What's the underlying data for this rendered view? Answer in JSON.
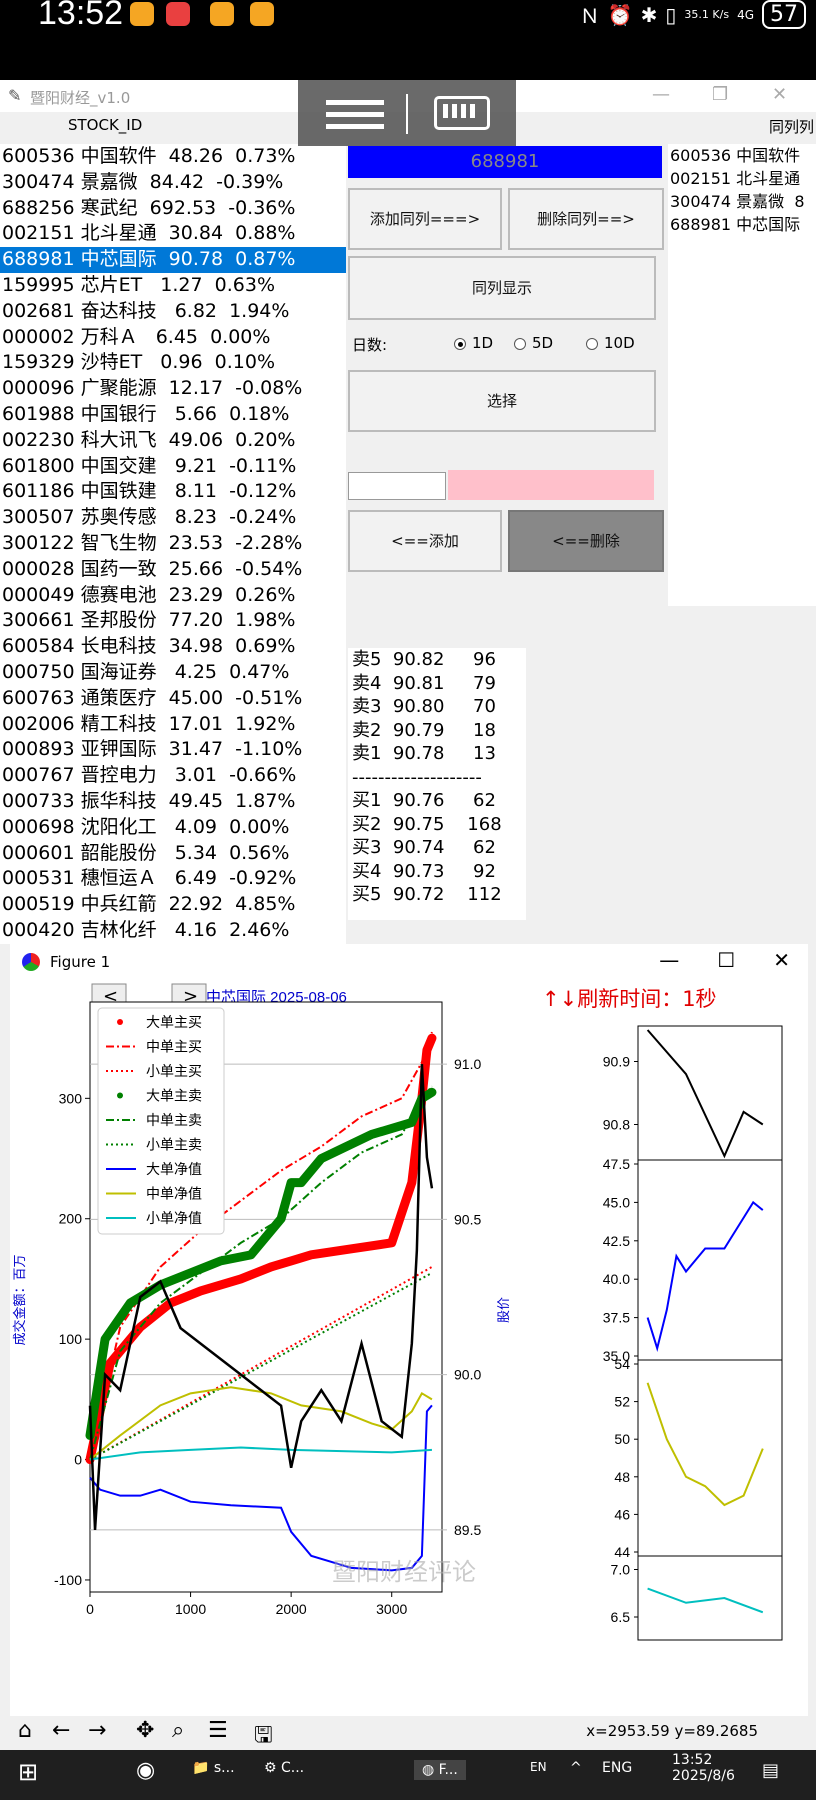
{
  "status": {
    "time": "13:52",
    "net_speed": "35.1 K/s",
    "network": "4G",
    "battery": "57"
  },
  "app": {
    "title": "暨阳财经_v1.0",
    "col_stock_id": "STOCK_ID",
    "col_peer": "同列列"
  },
  "stocks": [
    "600536 中国软件  48.26  0.73%",
    "300474 景嘉微  84.42  -0.39%",
    "688256 寒武纪  692.53  -0.36%",
    "002151 北斗星通  30.84  0.88%",
    "688981 中芯国际  90.78  0.87%",
    "159995 芯片ET   1.27  0.63%",
    "002681 奋达科技   6.82  1.94%",
    "000002 万科Ａ   6.45  0.00%",
    "159329 沙特ET   0.96  0.10%",
    "000096 广聚能源  12.17  -0.08%",
    "601988 中国银行   5.66  0.18%",
    "002230 科大讯飞  49.06  0.20%",
    "601800 中国交建   9.21  -0.11%",
    "601186 中国铁建   8.11  -0.12%",
    "300507 苏奥传感   8.23  -0.24%",
    "300122 智飞生物  23.53  -2.28%",
    "000028 国药一致  25.66  -0.54%",
    "000049 德赛电池  23.29  0.26%",
    "300661 圣邦股份  77.20  1.98%",
    "600584 长电科技  34.98  0.69%",
    "000750 国海证券   4.25  0.47%",
    "600763 通策医疗  45.00  -0.51%",
    "002006 精工科技  17.01  1.92%",
    "000893 亚钾国际  31.47  -1.10%",
    "000767 晋控电力   3.01  -0.66%",
    "000733 振华科技  49.45  1.87%",
    "000698 沈阳化工   4.09  0.00%",
    "000601 韶能股份   5.34  0.56%",
    "000531 穗恒运Ａ   6.49  -0.92%",
    "000519 中兵红箭  22.92  4.85%",
    "000420 吉林化纤   4.16  2.46%"
  ],
  "selected_index": 4,
  "panel": {
    "code": "688981",
    "add_peer": "添加同列===>",
    "del_peer": "删除同列==>",
    "show_peer": "同列显示",
    "days_label": "日数:",
    "opt_1d": "1D",
    "opt_5d": "5D",
    "opt_10d": "10D",
    "select": "选择",
    "add": "<==添加",
    "del": "<==删除"
  },
  "peers": [
    "600536 中国软件",
    "002151 北斗星通",
    "300474 景嘉微  8",
    "688981 中芯国际"
  ],
  "orderbook": {
    "asks": [
      "卖5  90.82     96",
      "卖4  90.81     79",
      "卖3  90.80     70",
      "卖2  90.79     18",
      "卖1  90.78     13"
    ],
    "sep": "--------------------",
    "bids": [
      "买1  90.76     62",
      "买2  90.75    168",
      "买3  90.74     62",
      "买4  90.73     92",
      "买5  90.72    112"
    ]
  },
  "figure": {
    "window_title": "Figure 1",
    "subtitle": "中芯国际  2025-08-06",
    "refresh": "↑↓刷新时间：1秒",
    "ylabel_left": "成交金额：百万",
    "ylabel_right": "股价",
    "watermark": "暨阳财经评论",
    "coord_x": "x=2953.59",
    "coord_y": "y=89.2685"
  },
  "colors": {
    "selected": "#0078d7",
    "code_bg": "#0000ff",
    "pink": "#ffc0cb"
  },
  "chart_data": [
    {
      "type": "line",
      "title": "中芯国际  2025-08-06",
      "ylabel": "成交金额：百万",
      "ylabel_right": "股价",
      "xlim": [
        0,
        3500
      ],
      "ylim": [
        -110,
        380
      ],
      "ylim_right": [
        89.3,
        91.2
      ],
      "xticks": [
        "0",
        "1000",
        "2000",
        "3000"
      ],
      "yticks": [
        "-100",
        "0",
        "100",
        "200",
        "300"
      ],
      "yticks_right": [
        "89.5",
        "90.0",
        "90.5",
        "91.0"
      ],
      "legend_position": "top-left",
      "series": [
        {
          "name": "大单主买",
          "color": "#ff0000",
          "style": "dots",
          "x": [
            0,
            200,
            500,
            800,
            1100,
            1500,
            1800,
            2000,
            2200,
            2600,
            3000,
            3200,
            3300,
            3350,
            3400
          ],
          "y": [
            0,
            80,
            110,
            130,
            140,
            150,
            160,
            165,
            170,
            175,
            180,
            230,
            300,
            340,
            350
          ]
        },
        {
          "name": "中单主买",
          "color": "#ff0000",
          "style": "dashdot",
          "x": [
            0,
            300,
            700,
            1100,
            1500,
            1900,
            2300,
            2700,
            3100,
            3300,
            3400
          ],
          "y": [
            0,
            110,
            160,
            190,
            215,
            240,
            260,
            285,
            300,
            330,
            355
          ]
        },
        {
          "name": "小单主买",
          "color": "#ff0000",
          "style": "dotted",
          "x": [
            0,
            3400
          ],
          "y": [
            0,
            160
          ]
        },
        {
          "name": "大单主卖",
          "color": "#008000",
          "style": "dots",
          "x": [
            0,
            150,
            400,
            700,
            1000,
            1300,
            1600,
            1900,
            2000,
            2100,
            2300,
            2800,
            3200,
            3300,
            3400
          ],
          "y": [
            20,
            100,
            130,
            145,
            155,
            165,
            170,
            200,
            230,
            230,
            250,
            270,
            280,
            300,
            305
          ]
        },
        {
          "name": "中单主卖",
          "color": "#008000",
          "style": "dashdot",
          "x": [
            0,
            300,
            700,
            1100,
            1500,
            1900,
            2300,
            2700,
            3100,
            3300,
            3400
          ],
          "y": [
            0,
            90,
            130,
            155,
            180,
            200,
            230,
            255,
            270,
            300,
            310
          ]
        },
        {
          "name": "小单主卖",
          "color": "#008000",
          "style": "dotted",
          "x": [
            0,
            3400
          ],
          "y": [
            0,
            155
          ]
        },
        {
          "name": "大单净值",
          "color": "#0000ff",
          "style": "solid",
          "x": [
            0,
            100,
            300,
            500,
            700,
            1000,
            1400,
            1900,
            2000,
            2200,
            2600,
            3000,
            3200,
            3300,
            3350,
            3400
          ],
          "y": [
            -15,
            -25,
            -30,
            -30,
            -25,
            -35,
            -38,
            -40,
            -60,
            -80,
            -90,
            -92,
            -90,
            -80,
            40,
            45
          ]
        },
        {
          "name": "中单净值",
          "color": "#bfbf00",
          "style": "solid",
          "x": [
            0,
            300,
            700,
            1000,
            1400,
            1800,
            2100,
            2500,
            2800,
            3000,
            3200,
            3300,
            3400
          ],
          "y": [
            0,
            20,
            45,
            55,
            60,
            55,
            45,
            40,
            30,
            25,
            40,
            55,
            50
          ]
        },
        {
          "name": "小单净值",
          "color": "#00bfbf",
          "style": "solid",
          "x": [
            0,
            500,
            1000,
            1500,
            2000,
            2500,
            3000,
            3400
          ],
          "y": [
            0,
            6,
            8,
            10,
            8,
            7,
            6,
            8
          ]
        },
        {
          "name": "",
          "color": "#000000",
          "style": "solid",
          "axis": "right",
          "x": [
            0,
            50,
            150,
            300,
            500,
            700,
            900,
            1100,
            1300,
            1500,
            1700,
            1900,
            2000,
            2100,
            2300,
            2500,
            2700,
            2900,
            3100,
            3200,
            3250,
            3300,
            3350,
            3400
          ],
          "y": [
            89.9,
            89.5,
            90.0,
            89.95,
            90.25,
            90.3,
            90.15,
            90.1,
            90.05,
            90.0,
            89.95,
            89.9,
            89.7,
            89.85,
            89.95,
            89.85,
            90.1,
            89.85,
            89.8,
            90.1,
            90.4,
            91.0,
            90.7,
            90.6
          ]
        }
      ]
    },
    {
      "type": "line",
      "ylim": [
        90.75,
        90.95
      ],
      "yticks": [
        "90.8",
        "90.9"
      ],
      "series": [
        {
          "color": "#000000",
          "x": [
            3360,
            3380,
            3400,
            3410,
            3420
          ],
          "y": [
            90.95,
            90.88,
            90.75,
            90.82,
            90.8
          ]
        }
      ]
    },
    {
      "type": "line",
      "ylim": [
        35,
        47.5
      ],
      "yticks": [
        "35.0",
        "37.5",
        "40.0",
        "42.5",
        "45.0",
        "47.5"
      ],
      "series": [
        {
          "color": "#0000ff",
          "x": [
            3360,
            3365,
            3370,
            3375,
            3380,
            3390,
            3400,
            3410,
            3415,
            3420
          ],
          "y": [
            37.5,
            35.5,
            38,
            41.5,
            40.5,
            42,
            42,
            44,
            45,
            44.5
          ]
        }
      ]
    },
    {
      "type": "line",
      "ylim": [
        44,
        54
      ],
      "yticks": [
        "44",
        "46",
        "48",
        "50",
        "52",
        "54"
      ],
      "series": [
        {
          "color": "#bfbf00",
          "x": [
            3360,
            3370,
            3380,
            3390,
            3400,
            3410,
            3420
          ],
          "y": [
            53,
            50,
            48,
            47.5,
            46.5,
            47,
            49.5
          ]
        }
      ]
    },
    {
      "type": "line",
      "ylim": [
        6.3,
        7.1
      ],
      "yticks": [
        "6.5",
        "7.0"
      ],
      "series": [
        {
          "color": "#00bfbf",
          "x": [
            3360,
            3380,
            3400,
            3420
          ],
          "y": [
            6.8,
            6.65,
            6.7,
            6.55
          ]
        }
      ]
    }
  ]
}
